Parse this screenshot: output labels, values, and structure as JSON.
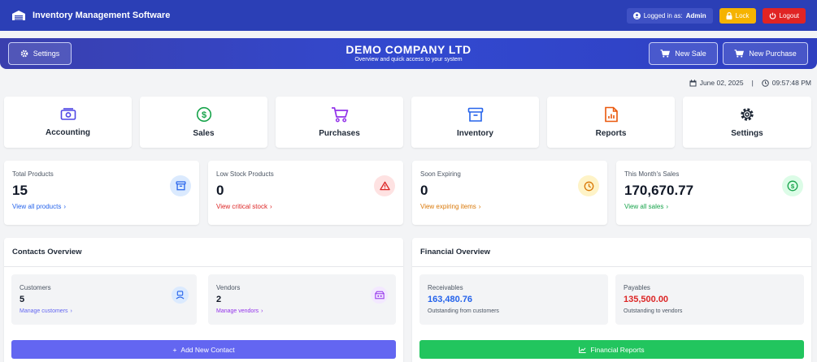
{
  "topbar": {
    "app_title": "Inventory Management Software",
    "user_label": "Logged in as:",
    "user_name": "Admin",
    "lock_label": "Lock",
    "logout_label": "Logout"
  },
  "header": {
    "settings_label": "Settings",
    "company": "DEMO COMPANY LTD",
    "subtitle": "Overview and quick access to your system",
    "new_sale_label": "New Sale",
    "new_purchase_label": "New Purchase"
  },
  "datetime": {
    "date": "June 02, 2025",
    "separator": "|",
    "time": "09:57:48 PM"
  },
  "tiles": [
    {
      "label": "Accounting",
      "icon": "money-icon",
      "color": "#4f46e5"
    },
    {
      "label": "Sales",
      "icon": "dollar-circle-icon",
      "color": "#16a34a"
    },
    {
      "label": "Purchases",
      "icon": "cart-icon",
      "color": "#9333ea"
    },
    {
      "label": "Inventory",
      "icon": "archive-icon",
      "color": "#2563eb"
    },
    {
      "label": "Reports",
      "icon": "report-icon",
      "color": "#ea580c"
    },
    {
      "label": "Settings",
      "icon": "gear-icon",
      "color": "#1f2937"
    }
  ],
  "stats": [
    {
      "title": "Total Products",
      "value": "15",
      "link": "View all products",
      "color": "#2563eb",
      "icon": "archive-icon"
    },
    {
      "title": "Low Stock Products",
      "value": "0",
      "link": "View critical stock",
      "color": "#dc2626",
      "icon": "warning-icon"
    },
    {
      "title": "Soon Expiring",
      "value": "0",
      "link": "View expiring items",
      "color": "#d97706",
      "icon": "clock-icon"
    },
    {
      "title": "This Month's Sales",
      "value": "170,670.77",
      "link": "View all sales",
      "color": "#16a34a",
      "icon": "dollar-circle-icon"
    }
  ],
  "contacts": {
    "title": "Contacts Overview",
    "customers_label": "Customers",
    "customers_value": "5",
    "customers_link": "Manage customers",
    "vendors_label": "Vendors",
    "vendors_value": "2",
    "vendors_link": "Manage vendors",
    "add_button": "Add New Contact"
  },
  "financial": {
    "title": "Financial Overview",
    "receivables_label": "Receivables",
    "receivables_value": "163,480.76",
    "receivables_note": "Outstanding from customers",
    "payables_label": "Payables",
    "payables_value": "135,500.00",
    "payables_note": "Outstanding to vendors",
    "reports_button": "Financial Reports"
  },
  "colors": {
    "topbar": "#2b3fb6",
    "add_contact_button": "#6366f1",
    "financial_reports_button": "#22c55e",
    "receivables": "#2563eb",
    "payables": "#dc2626"
  }
}
